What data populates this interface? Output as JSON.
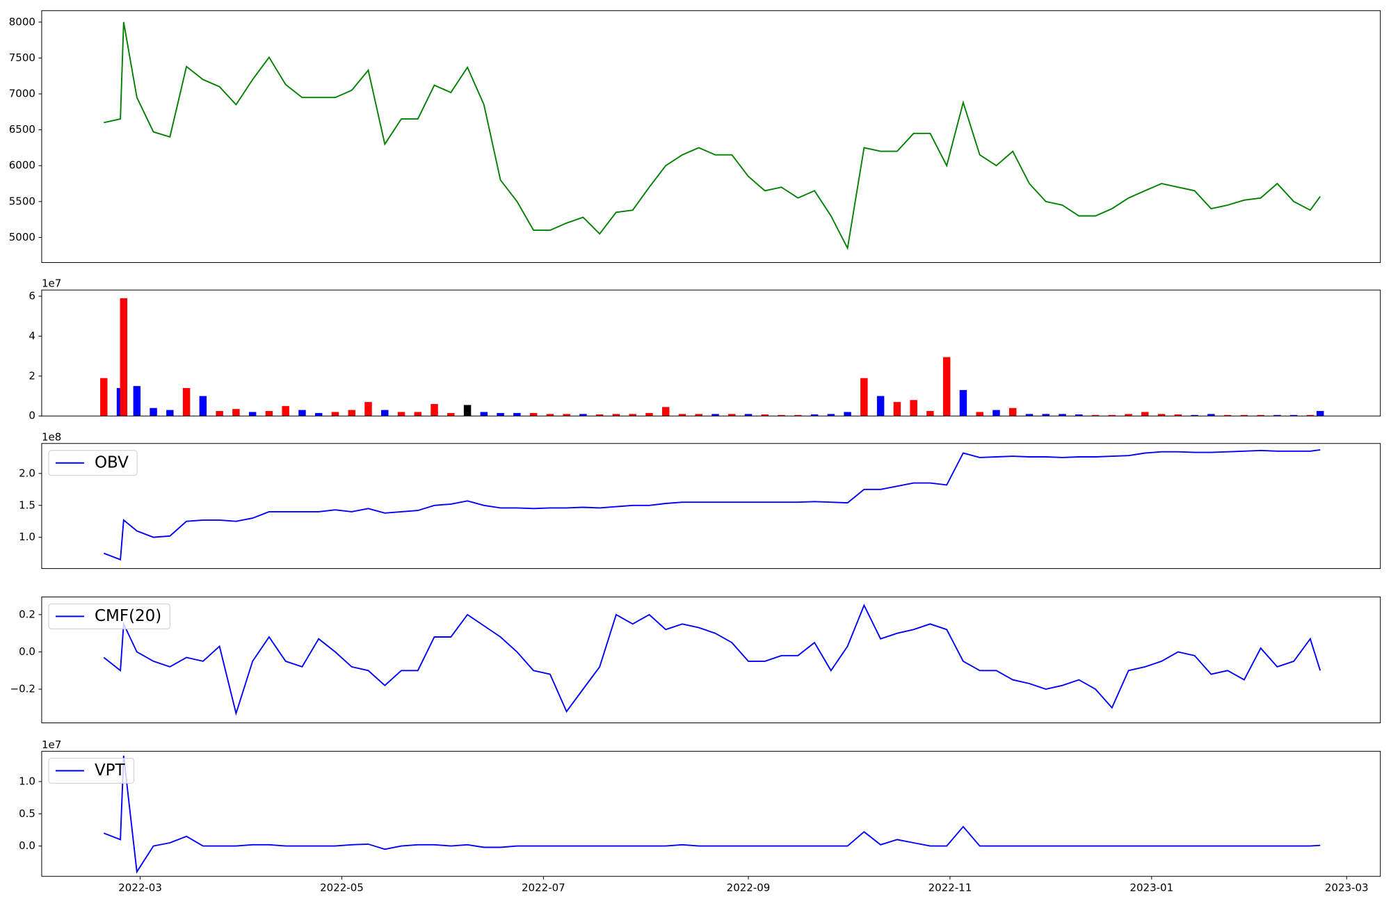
{
  "chart_data": [
    {
      "type": "line",
      "xlim": [
        29.2,
        434.2
      ],
      "ylim": [
        4650,
        8160
      ],
      "yticks": [
        5000,
        5500,
        6000,
        6500,
        7000,
        7500,
        8000
      ],
      "x": [
        48,
        53,
        54,
        58,
        63,
        68,
        73,
        78,
        83,
        88,
        93,
        98,
        103,
        108,
        113,
        118,
        123,
        128,
        133,
        138,
        143,
        148,
        153,
        158,
        163,
        168,
        173,
        178,
        183,
        188,
        193,
        198,
        203,
        208,
        213,
        218,
        223,
        228,
        233,
        238,
        243,
        248,
        253,
        258,
        263,
        268,
        273,
        278,
        283,
        288,
        293,
        298,
        303,
        308,
        313,
        318,
        323,
        328,
        333,
        338,
        343,
        348,
        353,
        358,
        363,
        368,
        373,
        378,
        383,
        388,
        393,
        398,
        403,
        408,
        413,
        416
      ],
      "series": [
        {
          "color": "#008000",
          "values": [
            6600,
            6650,
            8000,
            6950,
            6470,
            6400,
            7380,
            7200,
            7100,
            6850,
            7200,
            7510,
            7130,
            6950,
            6950,
            6950,
            7050,
            7330,
            6300,
            6650,
            6650,
            7120,
            7020,
            7370,
            6850,
            5800,
            5500,
            5100,
            5100,
            5200,
            5280,
            5050,
            5350,
            5380,
            5700,
            6000,
            6150,
            6250,
            6150,
            6150,
            5850,
            5650,
            5700,
            5550,
            5650,
            5300,
            4850,
            6250,
            6200,
            6200,
            6450,
            6450,
            6000,
            6880,
            6150,
            6000,
            6200,
            5750,
            5500,
            5450,
            5300,
            5300,
            5400,
            5550,
            5650,
            5750,
            5700,
            5650,
            5400,
            5450,
            5520,
            5550,
            5750,
            5500,
            5380,
            5570
          ]
        }
      ]
    },
    {
      "type": "bar",
      "xlim": [
        29.2,
        434.2
      ],
      "ylim": [
        0,
        6.31
      ],
      "yticks": [
        0,
        2,
        4,
        6
      ],
      "y_offset": "1e7",
      "x": [
        48,
        53,
        54,
        58,
        63,
        68,
        73,
        78,
        83,
        88,
        93,
        98,
        103,
        108,
        113,
        118,
        123,
        128,
        133,
        138,
        143,
        148,
        153,
        158,
        163,
        168,
        173,
        178,
        183,
        188,
        193,
        198,
        203,
        208,
        213,
        218,
        223,
        228,
        233,
        238,
        243,
        248,
        253,
        258,
        263,
        268,
        273,
        278,
        283,
        288,
        293,
        298,
        303,
        308,
        313,
        318,
        323,
        328,
        333,
        338,
        343,
        348,
        353,
        358,
        363,
        368,
        373,
        378,
        383,
        388,
        393,
        398,
        403,
        408,
        413,
        416
      ],
      "series": [
        {
          "values": [
            1.9,
            1.4,
            5.9,
            1.5,
            0.4,
            0.3,
            1.4,
            1.0,
            0.25,
            0.35,
            0.2,
            0.25,
            0.5,
            0.3,
            0.15,
            0.2,
            0.3,
            0.7,
            0.3,
            0.2,
            0.2,
            0.6,
            0.15,
            0.55,
            0.2,
            0.15,
            0.15,
            0.15,
            0.1,
            0.1,
            0.1,
            0.08,
            0.1,
            0.1,
            0.15,
            0.45,
            0.1,
            0.1,
            0.1,
            0.1,
            0.1,
            0.08,
            0.05,
            0.05,
            0.08,
            0.1,
            0.2,
            1.9,
            1.0,
            0.7,
            0.8,
            0.25,
            2.95,
            1.3,
            0.2,
            0.3,
            0.4,
            0.1,
            0.1,
            0.1,
            0.08,
            0.05,
            0.05,
            0.1,
            0.2,
            0.1,
            0.08,
            0.05,
            0.1,
            0.05,
            0.05,
            0.05,
            0.05,
            0.05,
            0.05,
            0.25
          ],
          "colors": [
            "#ff0000",
            "#0000ff",
            "#ff0000",
            "#0000ff",
            "#0000ff",
            "#0000ff",
            "#ff0000",
            "#0000ff",
            "#ff0000",
            "#ff0000",
            "#0000ff",
            "#ff0000",
            "#ff0000",
            "#0000ff",
            "#0000ff",
            "#ff0000",
            "#ff0000",
            "#ff0000",
            "#0000ff",
            "#ff0000",
            "#ff0000",
            "#ff0000",
            "#ff0000",
            "#000000",
            "#0000ff",
            "#0000ff",
            "#0000ff",
            "#ff0000",
            "#ff0000",
            "#ff0000",
            "#0000ff",
            "#ff0000",
            "#ff0000",
            "#ff0000",
            "#ff0000",
            "#ff0000",
            "#ff0000",
            "#ff0000",
            "#0000ff",
            "#ff0000",
            "#0000ff",
            "#ff0000",
            "#ff0000",
            "#ff0000",
            "#0000ff",
            "#0000ff",
            "#0000ff",
            "#ff0000",
            "#0000ff",
            "#ff0000",
            "#ff0000",
            "#ff0000",
            "#ff0000",
            "#0000ff",
            "#ff0000",
            "#0000ff",
            "#ff0000",
            "#0000ff",
            "#0000ff",
            "#0000ff",
            "#0000ff",
            "#ff0000",
            "#ff0000",
            "#ff0000",
            "#ff0000",
            "#ff0000",
            "#ff0000",
            "#0000ff",
            "#0000ff",
            "#ff0000",
            "#ff0000",
            "#ff0000",
            "#0000ff",
            "#0000ff",
            "#ff0000",
            "#0000ff"
          ]
        }
      ]
    },
    {
      "type": "line",
      "xlim": [
        29.2,
        434.2
      ],
      "ylim": [
        0.51,
        2.47
      ],
      "yticks": [
        {
          "value": 1,
          "label": "1.0"
        },
        1.5,
        {
          "value": 2,
          "label": "2.0"
        }
      ],
      "y_offset": "1e8",
      "legend": "upper left",
      "x": [
        48,
        53,
        54,
        58,
        63,
        68,
        73,
        78,
        83,
        88,
        93,
        98,
        103,
        108,
        113,
        118,
        123,
        128,
        133,
        138,
        143,
        148,
        153,
        158,
        163,
        168,
        173,
        178,
        183,
        188,
        193,
        198,
        203,
        208,
        213,
        218,
        223,
        228,
        233,
        238,
        243,
        248,
        253,
        258,
        263,
        268,
        273,
        278,
        283,
        288,
        293,
        298,
        303,
        308,
        313,
        318,
        323,
        328,
        333,
        338,
        343,
        348,
        353,
        358,
        363,
        368,
        373,
        378,
        383,
        388,
        393,
        398,
        403,
        408,
        413,
        416
      ],
      "series": [
        {
          "name": "OBV",
          "color": "#0000ff",
          "values": [
            0.75,
            0.65,
            1.27,
            1.1,
            1.0,
            1.02,
            1.25,
            1.27,
            1.27,
            1.25,
            1.3,
            1.4,
            1.4,
            1.4,
            1.4,
            1.43,
            1.4,
            1.45,
            1.38,
            1.4,
            1.42,
            1.5,
            1.52,
            1.57,
            1.5,
            1.46,
            1.46,
            1.45,
            1.46,
            1.46,
            1.47,
            1.46,
            1.48,
            1.5,
            1.5,
            1.53,
            1.55,
            1.55,
            1.55,
            1.55,
            1.55,
            1.55,
            1.55,
            1.55,
            1.56,
            1.55,
            1.54,
            1.75,
            1.75,
            1.8,
            1.85,
            1.85,
            1.82,
            2.32,
            2.25,
            2.26,
            2.27,
            2.26,
            2.26,
            2.25,
            2.26,
            2.26,
            2.27,
            2.28,
            2.32,
            2.34,
            2.34,
            2.33,
            2.33,
            2.34,
            2.35,
            2.36,
            2.35,
            2.35,
            2.35,
            2.37
          ]
        }
      ]
    },
    {
      "type": "line",
      "xlim": [
        29.2,
        434.2
      ],
      "ylim": [
        -0.381,
        0.295
      ],
      "yticks": [
        {
          "value": -0.2,
          "label": "−0.2"
        },
        {
          "value": 0,
          "label": "0.0"
        },
        0.2
      ],
      "legend": "upper left",
      "x": [
        48,
        53,
        54,
        58,
        63,
        68,
        73,
        78,
        83,
        88,
        93,
        98,
        103,
        108,
        113,
        118,
        123,
        128,
        133,
        138,
        143,
        148,
        153,
        158,
        163,
        168,
        173,
        178,
        183,
        188,
        193,
        198,
        203,
        208,
        213,
        218,
        223,
        228,
        233,
        238,
        243,
        248,
        253,
        258,
        263,
        268,
        273,
        278,
        283,
        288,
        293,
        298,
        303,
        308,
        313,
        318,
        323,
        328,
        333,
        338,
        343,
        348,
        353,
        358,
        363,
        368,
        373,
        378,
        383,
        388,
        393,
        398,
        403,
        408,
        413,
        416
      ],
      "series": [
        {
          "name": "CMF(20)",
          "color": "#0000ff",
          "values": [
            -0.03,
            -0.1,
            0.15,
            0.0,
            -0.05,
            -0.08,
            -0.03,
            -0.05,
            0.03,
            -0.33,
            -0.05,
            0.08,
            -0.05,
            -0.08,
            0.07,
            0.0,
            -0.08,
            -0.1,
            -0.18,
            -0.1,
            -0.1,
            0.08,
            0.08,
            0.2,
            0.14,
            0.08,
            0.0,
            -0.1,
            -0.12,
            -0.32,
            -0.2,
            -0.08,
            0.2,
            0.15,
            0.2,
            0.12,
            0.15,
            0.13,
            0.1,
            0.05,
            -0.05,
            -0.05,
            -0.02,
            -0.02,
            0.05,
            -0.1,
            0.03,
            0.25,
            0.07,
            0.1,
            0.12,
            0.15,
            0.12,
            -0.05,
            -0.1,
            -0.1,
            -0.15,
            -0.17,
            -0.2,
            -0.18,
            -0.15,
            -0.2,
            -0.3,
            -0.1,
            -0.08,
            -0.05,
            0.0,
            -0.02,
            -0.12,
            -0.1,
            -0.15,
            0.02,
            -0.08,
            -0.05,
            0.07,
            -0.1
          ]
        }
      ]
    },
    {
      "type": "line",
      "xlim": [
        29.2,
        434.2
      ],
      "ylim": [
        -0.47,
        1.47
      ],
      "yticks": [
        {
          "value": 0,
          "label": "0.0"
        },
        0.5,
        {
          "value": 1,
          "label": "1.0"
        }
      ],
      "y_offset": "1e7",
      "legend": "upper left",
      "xticks": [
        {
          "value": 59,
          "label": "2022-03"
        },
        {
          "value": 120,
          "label": "2022-05"
        },
        {
          "value": 181,
          "label": "2022-07"
        },
        {
          "value": 243,
          "label": "2022-09"
        },
        {
          "value": 304,
          "label": "2022-11"
        },
        {
          "value": 365,
          "label": "2023-01"
        },
        {
          "value": 424,
          "label": "2023-03"
        }
      ],
      "x": [
        48,
        53,
        54,
        58,
        63,
        68,
        73,
        78,
        83,
        88,
        93,
        98,
        103,
        108,
        113,
        118,
        123,
        128,
        133,
        138,
        143,
        148,
        153,
        158,
        163,
        168,
        173,
        178,
        183,
        188,
        193,
        198,
        203,
        208,
        213,
        218,
        223,
        228,
        233,
        238,
        243,
        248,
        253,
        258,
        263,
        268,
        273,
        278,
        283,
        288,
        293,
        298,
        303,
        308,
        313,
        318,
        323,
        328,
        333,
        338,
        343,
        348,
        353,
        358,
        363,
        368,
        373,
        378,
        383,
        388,
        393,
        398,
        403,
        408,
        413,
        416
      ],
      "series": [
        {
          "name": "VPT",
          "color": "#0000ff",
          "values": [
            0.2,
            0.1,
            1.4,
            -0.4,
            0.0,
            0.05,
            0.15,
            0.0,
            0.0,
            0.0,
            0.02,
            0.02,
            0.0,
            0.0,
            0.0,
            0.0,
            0.02,
            0.03,
            -0.05,
            0.0,
            0.02,
            0.02,
            0.0,
            0.02,
            -0.02,
            -0.02,
            0.0,
            0.0,
            0.0,
            0.0,
            0.0,
            0.0,
            0.0,
            0.0,
            0.0,
            0.0,
            0.02,
            0.0,
            0.0,
            0.0,
            0.0,
            0.0,
            0.0,
            0.0,
            0.0,
            0.0,
            0.0,
            0.22,
            0.02,
            0.1,
            0.05,
            0.0,
            0.0,
            0.3,
            0.0,
            0.0,
            0.0,
            0.0,
            0.0,
            0.0,
            0.0,
            0.0,
            0.0,
            0.0,
            0.0,
            0.0,
            0.0,
            0.0,
            0.0,
            0.0,
            0.0,
            0.0,
            0.0,
            0.0,
            0.0,
            0.01
          ]
        }
      ]
    }
  ]
}
